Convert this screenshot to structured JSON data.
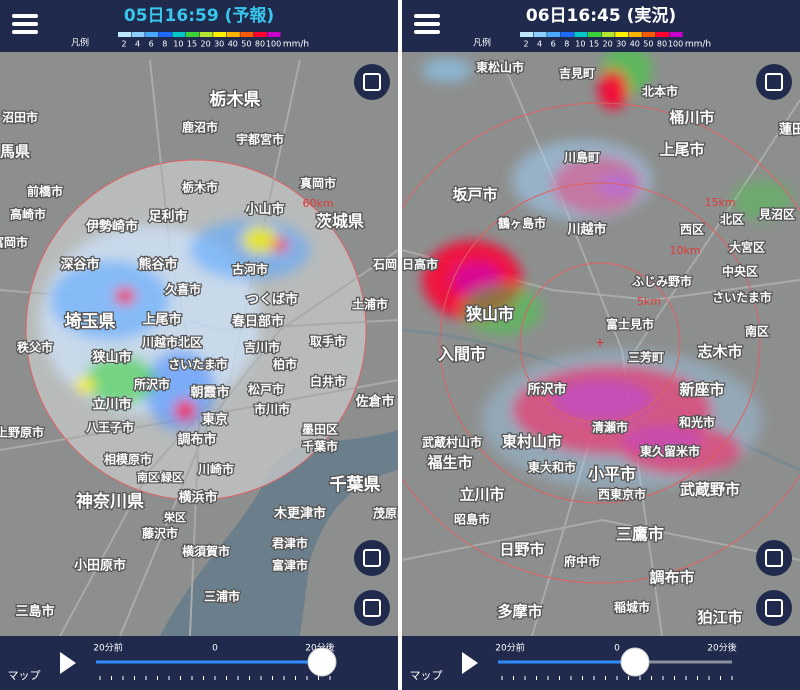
{
  "screens": [
    {
      "title": "05日16:59 (予報)",
      "legend": {
        "label": "凡例",
        "scale": [
          2,
          4,
          6,
          8,
          10,
          15,
          20,
          30,
          40,
          50,
          80,
          100
        ],
        "unit": "mm/h",
        "colors": [
          "#bfe8ff",
          "#8ccfff",
          "#4aa8ff",
          "#1e6cff",
          "#00c8c8",
          "#3cd23c",
          "#b4e632",
          "#fff000",
          "#ffb400",
          "#ff5a00",
          "#ff0032",
          "#c800c8"
        ]
      },
      "map_labels": [
        "栃木県",
        "沼田市",
        "鹿沼市",
        "宇都宮市",
        "馬県",
        "栃木市",
        "真岡市",
        "前橋市",
        "高崎市",
        "伊勢崎市",
        "足利市",
        "小山市",
        "茨城県",
        "富岡市",
        "深谷市",
        "熊谷市",
        "古河市",
        "石岡",
        "久喜市",
        "つくば市",
        "土浦市",
        "埼玉県",
        "上尾市",
        "春日部市",
        "秩父市",
        "川越市",
        "北区",
        "吉川市",
        "取手市",
        "狭山市",
        "さいたま市",
        "柏市",
        "所沢市",
        "白井市",
        "朝霞市",
        "松戸市",
        "佐倉市",
        "立川市",
        "東京",
        "市川市",
        "八王子市",
        "上野原市",
        "墨田区",
        "調布市",
        "千葉市",
        "相模原市",
        "南区",
        "緑区",
        "川崎市",
        "千葉県",
        "横浜市",
        "神奈川県",
        "木更津市",
        "茂原",
        "栄区",
        "藤沢市",
        "横須賀市",
        "君津市",
        "小田原市",
        "富津市",
        "三浦市",
        "三島市"
      ],
      "distance_labels": [
        "60km"
      ],
      "slider": {
        "start": "20分前",
        "mid": "0",
        "end": "20分後"
      },
      "map_credit": "マップ"
    },
    {
      "title": "06日16:45 (実況)",
      "legend": {
        "label": "凡例",
        "scale": [
          2,
          4,
          6,
          8,
          10,
          15,
          20,
          30,
          40,
          50,
          80,
          100
        ],
        "unit": "mm/h",
        "colors": [
          "#bfe8ff",
          "#8ccfff",
          "#4aa8ff",
          "#1e6cff",
          "#00c8c8",
          "#3cd23c",
          "#b4e632",
          "#fff000",
          "#ffb400",
          "#ff5a00",
          "#ff0032",
          "#c800c8"
        ]
      },
      "map_labels": [
        "東松山市",
        "吉見町",
        "北本市",
        "桶川市",
        "蓮田",
        "上尾市",
        "川島町",
        "坂戸市",
        "鶴ヶ島市",
        "川越市",
        "北区",
        "見沼区",
        "西区",
        "大宮区",
        "日高市",
        "ふじみ野市",
        "中央区",
        "さいたま市",
        "狭山市",
        "富士見市",
        "南区",
        "志木市",
        "入間市",
        "三芳町",
        "所沢市",
        "新座市",
        "和光市",
        "清瀬市",
        "武蔵村山市",
        "東村山市",
        "東久留米市",
        "福生市",
        "東大和市",
        "小平市",
        "西東京市",
        "武蔵野市",
        "立川市",
        "昭島市",
        "三鷹市",
        "日野市",
        "府中市",
        "調布市",
        "多摩市",
        "稲城市",
        "狛江市"
      ],
      "distance_labels": [
        "15km",
        "10km",
        "5km"
      ],
      "slider": {
        "start": "20分前",
        "mid": "0",
        "end": "20分後"
      },
      "map_credit": "マップ"
    }
  ]
}
